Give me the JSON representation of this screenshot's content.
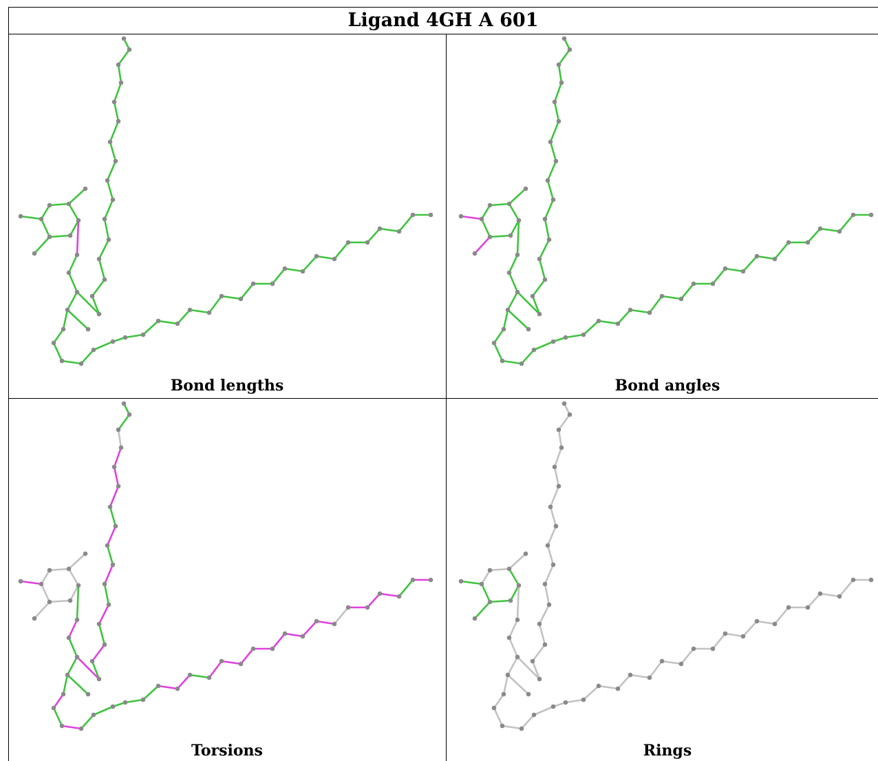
{
  "title": "Ligand 4GH A 601",
  "colors": {
    "good": "#3ec43e",
    "outlier": "#e040e0",
    "neutral": "#c2c2c2",
    "atom": "#8a8a8a"
  },
  "panels": [
    {
      "caption": "Bond lengths",
      "default_bond": "good",
      "outlier_bonds": [
        9
      ]
    },
    {
      "caption": "Bond angles",
      "default_bond": "good",
      "outlier_bonds": [
        6,
        7
      ]
    },
    {
      "caption": "Torsions",
      "default_bond": "good",
      "outlier_bonds": [
        6,
        10,
        14,
        16,
        22,
        23,
        25,
        26,
        27,
        28,
        29,
        30,
        31,
        32,
        34,
        35,
        36,
        38,
        40,
        42,
        44,
        46,
        48,
        50,
        51,
        52
      ],
      "neutral_bonds": [
        0,
        1,
        2,
        3,
        4,
        5,
        7,
        8,
        33,
        53
      ]
    },
    {
      "caption": "Rings",
      "default_bond": "neutral",
      "good_bonds": [
        2,
        3,
        4,
        5,
        6,
        7
      ]
    }
  ]
}
